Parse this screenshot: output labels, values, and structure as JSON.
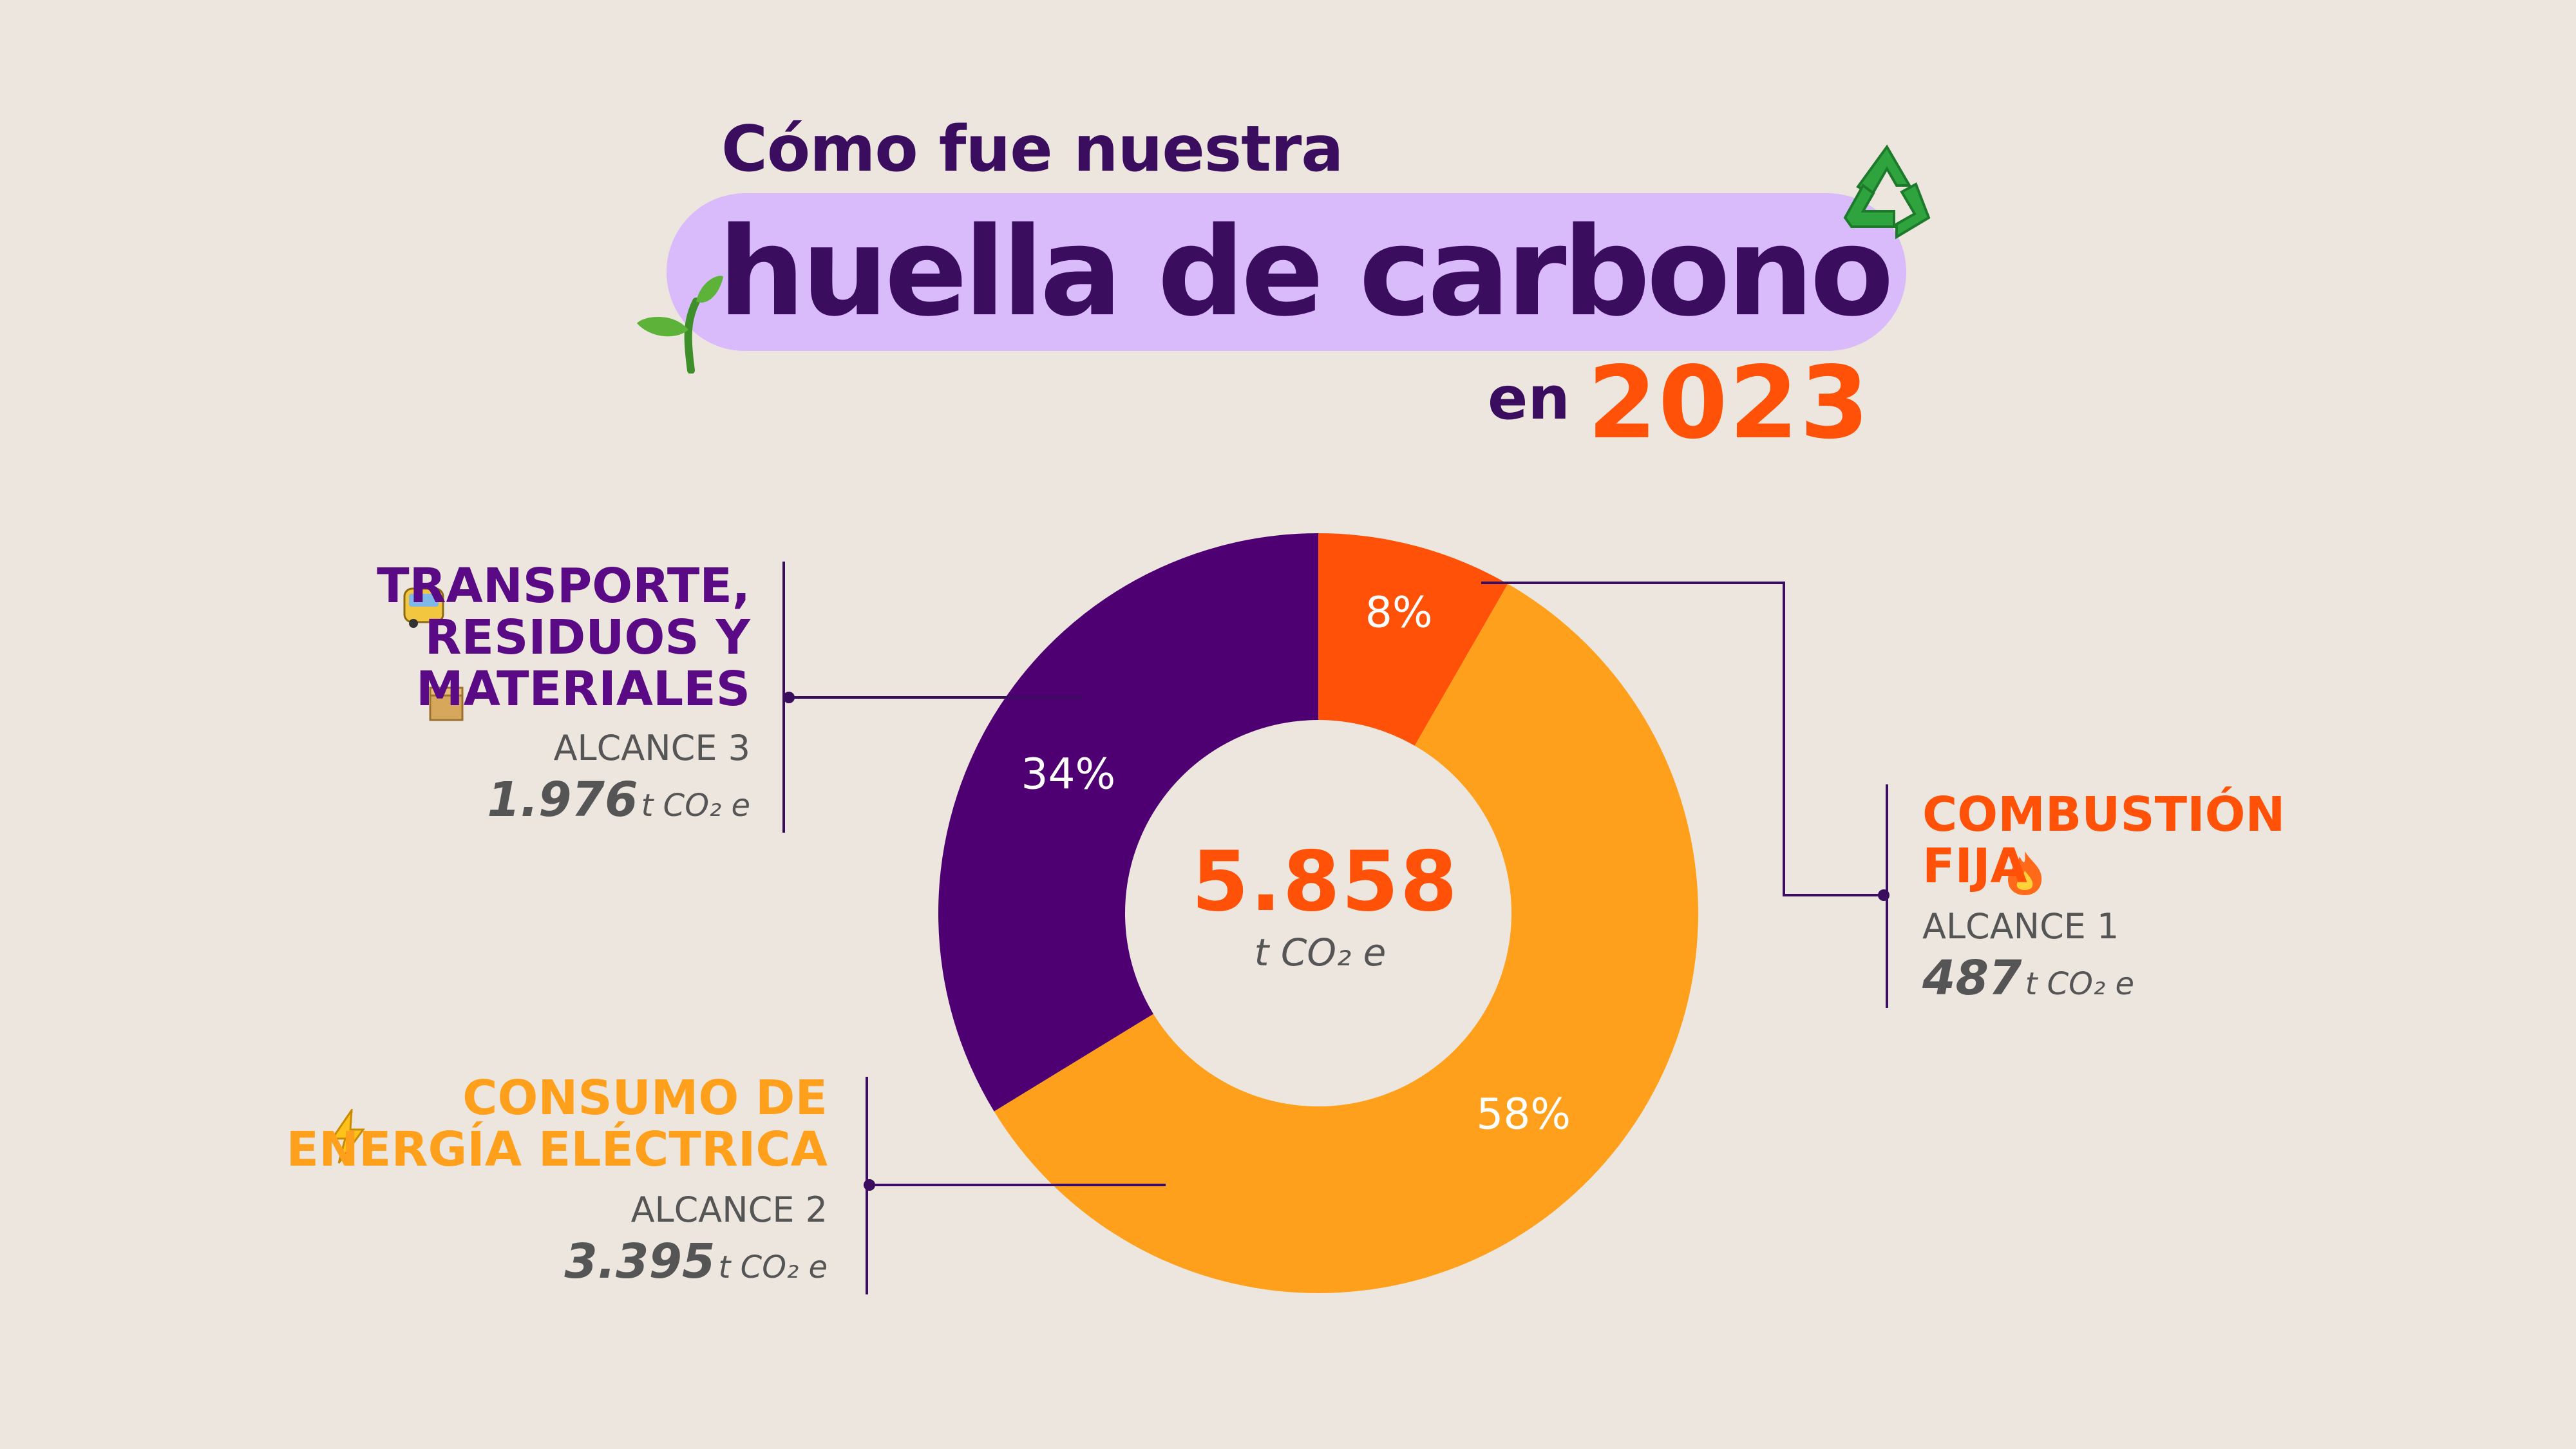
{
  "header": {
    "line1": "Cómo fue nuestra",
    "line2": "huella de carbono",
    "line3_prefix": "en",
    "year": "2023"
  },
  "chart_data": {
    "type": "pie",
    "donut": true,
    "total": "5.858",
    "total_unit": "t CO₂ e",
    "slices": [
      {
        "name": "COMBUSTIÓN FIJA",
        "scope": "ALCANCE 1",
        "value": 487,
        "value_label": "487",
        "percent": 8,
        "percent_label": "8%",
        "color": "#FF5208"
      },
      {
        "name": "CONSUMO DE ENERGÍA ELÉCTRICA",
        "scope": "ALCANCE 2",
        "value": 3395,
        "value_label": "3.395",
        "percent": 58,
        "percent_label": "58%",
        "color": "#FFA01C"
      },
      {
        "name": "TRANSPORTE, RESIDUOS Y MATERIALES",
        "scope": "ALCANCE 3",
        "value": 1976,
        "value_label": "1.976",
        "percent": 34,
        "percent_label": "34%",
        "color": "#4E0073"
      }
    ]
  },
  "labels": {
    "combustion": {
      "line1": "COMBUSTIÓN",
      "line2": "FIJA",
      "scope": "ALCANCE 1",
      "value": "487",
      "unit": "t CO₂ e",
      "color": "#FF5208"
    },
    "energia": {
      "line1": "CONSUMO DE",
      "line2": "ENERGÍA ELÉCTRICA",
      "scope": "ALCANCE 2",
      "value": "3.395",
      "unit": "t CO₂ e",
      "color": "#FFA01C"
    },
    "transporte": {
      "line1": "TRANSPORTE,",
      "line2": "RESIDUOS Y",
      "line3": "MATERIALES",
      "scope": "ALCANCE 3",
      "value": "1.976",
      "unit": "t CO₂ e",
      "color": "#5A0A85"
    }
  },
  "icons": [
    "sprout-icon",
    "recycle-icon",
    "bus-icon",
    "box-icon",
    "lightning-icon",
    "fire-icon"
  ]
}
